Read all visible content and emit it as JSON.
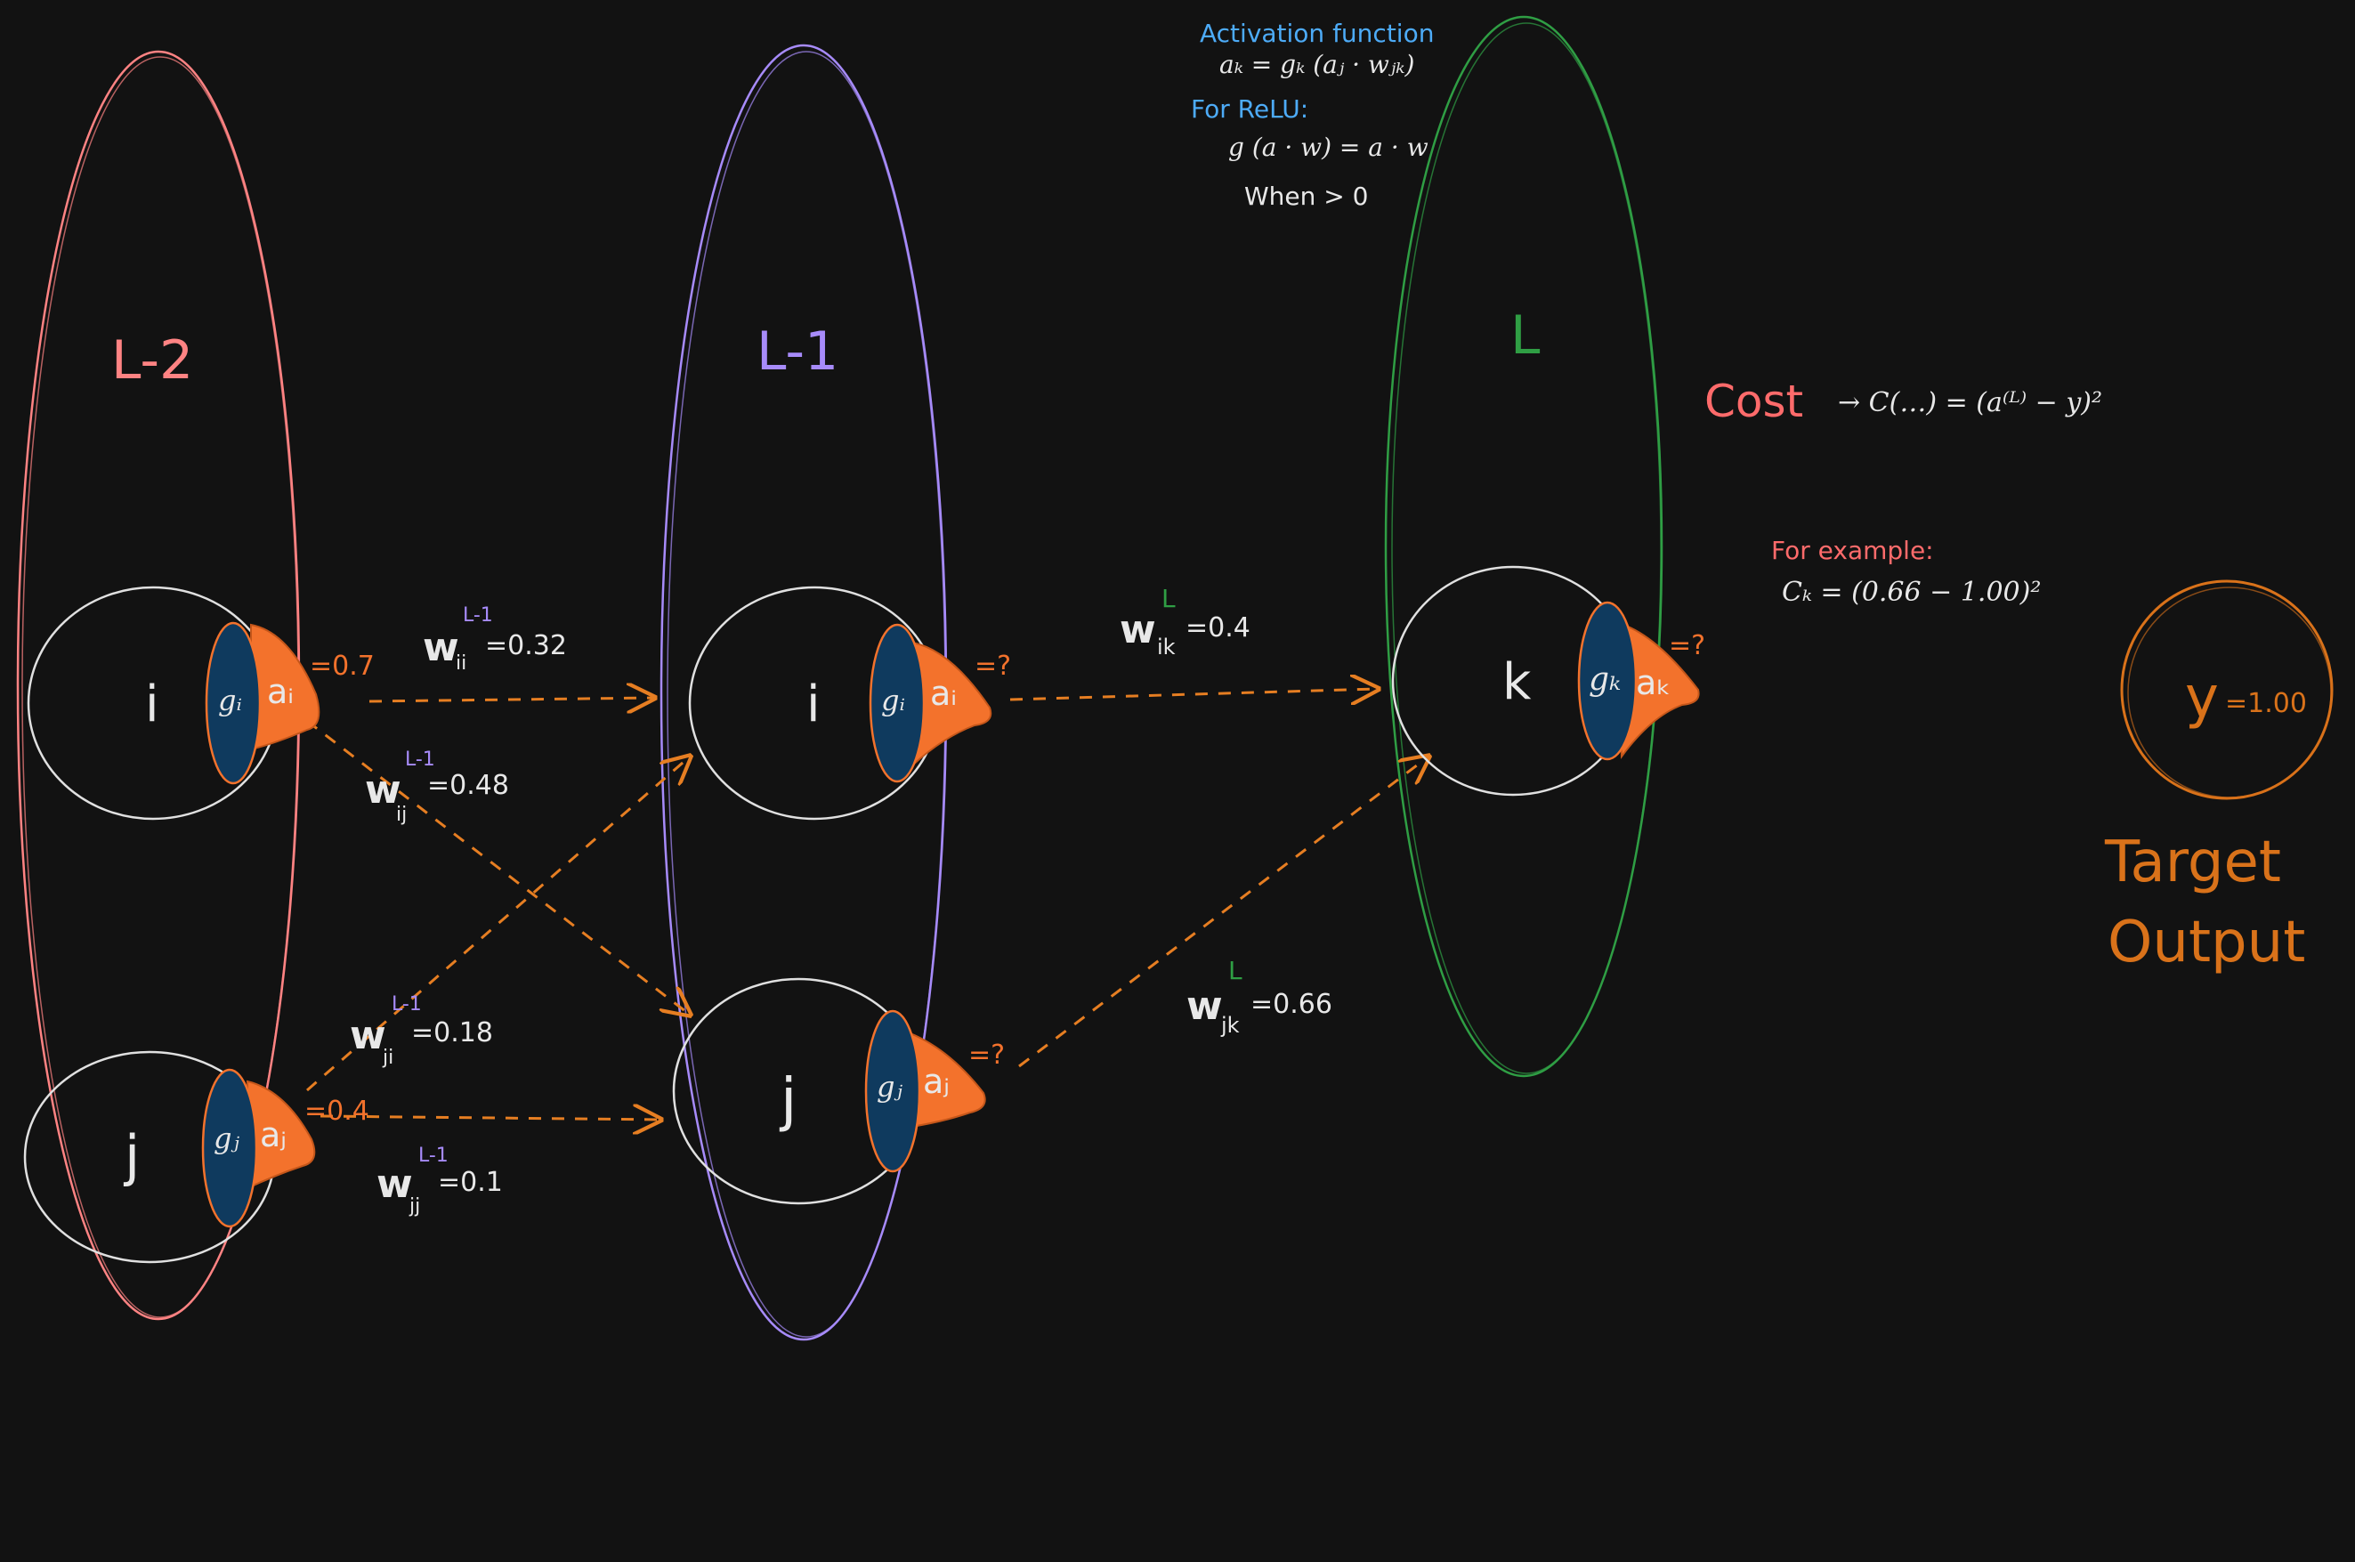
{
  "colors": {
    "background": "#121212",
    "layer_l2": "#ff8383",
    "layer_l1": "#a78bfa",
    "layer_l": "#2f9e44",
    "neuron_outline": "#e0e0e0",
    "g_fill": "#0f3a5e",
    "a_fill": "#f3722c",
    "edge": "#e67e22",
    "white_text": "#e8e8e8",
    "blue_text": "#4dabf7",
    "target": "#d9721a",
    "cost_text": "#ff6b6b"
  },
  "info": {
    "heading": "Activation function",
    "formula": "aₖ = gₖ (aⱼ · wⱼₖ)",
    "relu_label": "For ReLU:",
    "relu_formula": "g (a · w) = a · w",
    "condition": "When > 0"
  },
  "cost": {
    "label": "Cost",
    "formula": "→ C(…) = (a⁽ᴸ⁾ − y)²",
    "example_label": "For example:",
    "example_formula": "Cₖ = (0.66 − 1.00)²"
  },
  "layers": {
    "l2": {
      "label": "L-2"
    },
    "l1": {
      "label": "L-1"
    },
    "l": {
      "label": "L"
    }
  },
  "neurons": {
    "l2_i": {
      "name": "i",
      "g": "gᵢ",
      "a": "aᵢ",
      "value": "=0.7"
    },
    "l2_j": {
      "name": "j",
      "g": "gⱼ",
      "a": "aⱼ",
      "value": "=0.4"
    },
    "l1_i": {
      "name": "i",
      "g": "gᵢ",
      "a": "aᵢ",
      "value": "=?"
    },
    "l1_j": {
      "name": "j",
      "g": "gⱼ",
      "a": "aⱼ",
      "value": "=?"
    },
    "l_k": {
      "name": "k",
      "g": "gₖ",
      "a": "aₖ",
      "value": "=?"
    }
  },
  "weights": {
    "w_ii": {
      "w": "w",
      "sub": "ii",
      "sup": "L-1",
      "value": "=0.32"
    },
    "w_ij": {
      "w": "w",
      "sub": "ij",
      "sup": "L-1",
      "value": "=0.48"
    },
    "w_ji": {
      "w": "w",
      "sub": "ji",
      "sup": "L-1",
      "value": "=0.18"
    },
    "w_jj": {
      "w": "w",
      "sub": "jj",
      "sup": "L-1",
      "value": "=0.1"
    },
    "w_ik": {
      "w": "w",
      "sub": "ik",
      "sup": "L",
      "value": "=0.4"
    },
    "w_jk": {
      "w": "w",
      "sub": "jk",
      "sup": "L",
      "value": "=0.66"
    }
  },
  "target": {
    "symbol": "y",
    "value": "=1.00",
    "caption_line1": "Target",
    "caption_line2": "Output"
  }
}
